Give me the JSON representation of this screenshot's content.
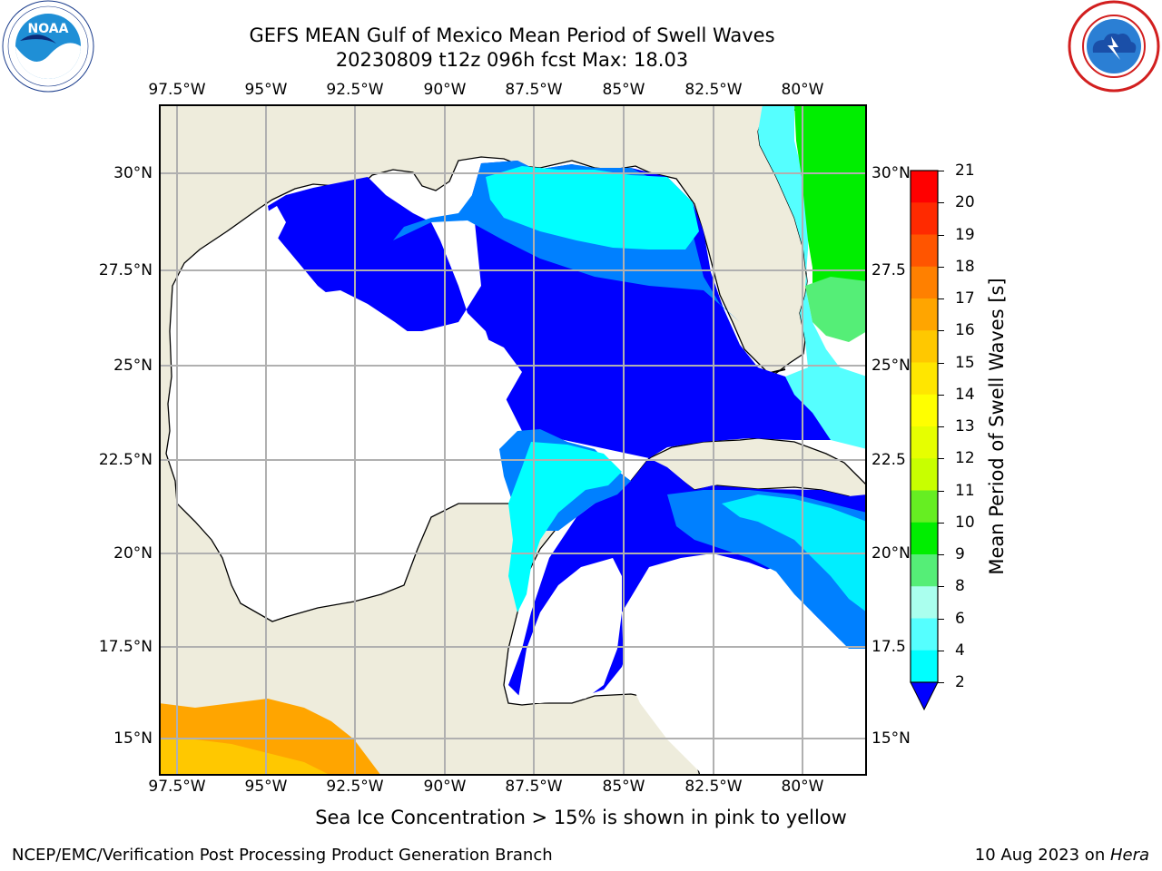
{
  "header": {
    "title_line1": "GEFS MEAN Gulf of Mexico Mean Period of Swell Waves",
    "title_line2": "20230809 t12z 096h fcst   Max: 18.03"
  },
  "logos": {
    "left": "noaa-logo",
    "right": "national-weather-service-logo"
  },
  "axes": {
    "lon_labels": [
      "97.5°W",
      "95°W",
      "92.5°W",
      "90°W",
      "87.5°W",
      "85°W",
      "82.5°W",
      "80°W"
    ],
    "lat_labels_left": [
      "30°N",
      "27.5°N",
      "25°N",
      "22.5°N",
      "20°N",
      "17.5°N",
      "15°N"
    ],
    "lat_labels_right": [
      "30°N",
      "27.5",
      "25°N",
      "22.5",
      "20°N",
      "17.5",
      "15°N"
    ]
  },
  "colorbar": {
    "label": "Mean Period of Swell Waves [s]",
    "ticks": [
      "21",
      "20",
      "19",
      "18",
      "17",
      "16",
      "15",
      "14",
      "13",
      "12",
      "11",
      "10",
      "9",
      "8",
      "6",
      "4",
      "2"
    ],
    "colors": [
      "#ff0000",
      "#ff2a00",
      "#ff5500",
      "#ff8000",
      "#ffa500",
      "#ffc800",
      "#ffe600",
      "#ffff00",
      "#e6ff00",
      "#c8ff00",
      "#66ee22",
      "#00ee00",
      "#55ee77",
      "#aaffee",
      "#55ffff",
      "#00ffff",
      "#00eeff",
      "#0080ff",
      "#0000ff"
    ],
    "land": "#eeecdc"
  },
  "note": "Sea Ice Concentration > 15% is shown in pink to yellow",
  "footer": {
    "left": "NCEP/EMC/Verification Post Processing Product Generation Branch",
    "date": "10 Aug 2023 on ",
    "host": "Hera"
  }
}
